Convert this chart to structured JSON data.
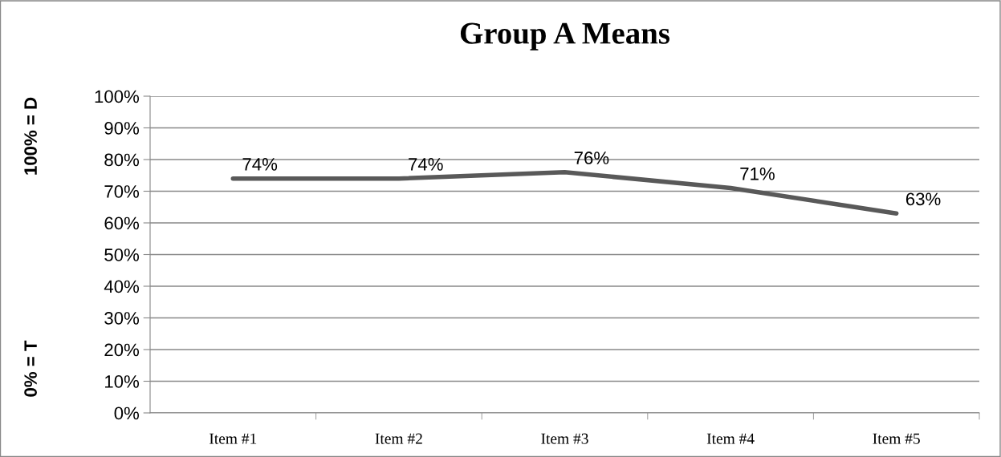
{
  "chart_data": {
    "type": "line",
    "title": "Group A Means",
    "ylabel": "100% = D",
    "annotations": [
      "0% = T"
    ],
    "categories": [
      "Item #1",
      "Item #2",
      "Item #3",
      "Item #4",
      "Item #5"
    ],
    "series": [
      {
        "color": "#595959",
        "values": [
          74,
          74,
          76,
          71,
          63
        ],
        "value_labels": [
          "74%",
          "74%",
          "76%",
          "71%",
          "63%"
        ]
      }
    ],
    "ylim": [
      0,
      100
    ],
    "yticks": [
      {
        "value": 0,
        "label": "0%"
      },
      {
        "value": 10,
        "label": "10%"
      },
      {
        "value": 20,
        "label": "20%"
      },
      {
        "value": 30,
        "label": "30%"
      },
      {
        "value": 40,
        "label": "40%"
      },
      {
        "value": 50,
        "label": "50%"
      },
      {
        "value": 60,
        "label": "60%"
      },
      {
        "value": 70,
        "label": "70%"
      },
      {
        "value": 80,
        "label": "80%"
      },
      {
        "value": 90,
        "label": "90%"
      },
      {
        "value": 100,
        "label": "100%"
      }
    ],
    "grid": "y",
    "marker": "none",
    "line_style": "solid"
  }
}
